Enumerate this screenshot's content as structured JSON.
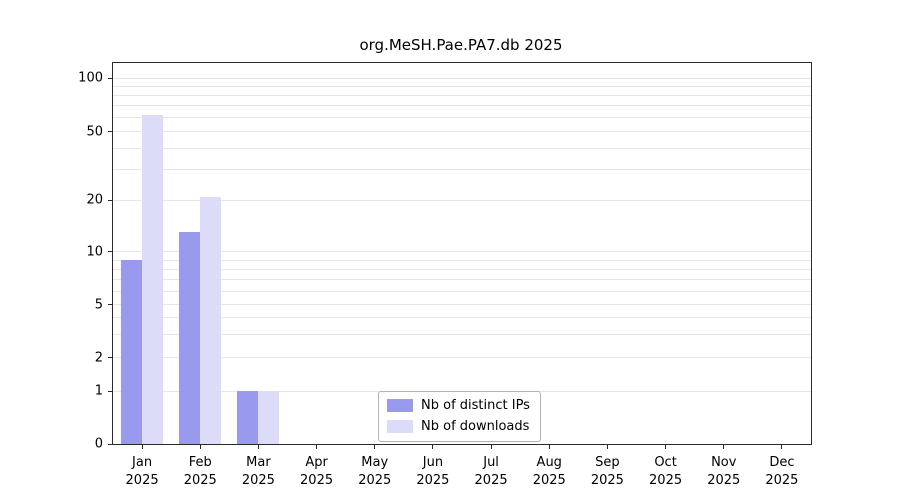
{
  "title": "org.MeSH.Pae.PA7.db 2025",
  "chart_data": {
    "type": "bar",
    "title": "org.MeSH.Pae.PA7.db 2025",
    "xlabel": "",
    "ylabel": "",
    "yscale": "log-like",
    "y_ticks": [
      0,
      1,
      2,
      5,
      10,
      20,
      50,
      100
    ],
    "ylim": [
      0,
      120
    ],
    "grid": "horizontal minor log gridlines",
    "legend_position": "bottom-center-inside",
    "categories": [
      "Jan 2025",
      "Feb 2025",
      "Mar 2025",
      "Apr 2025",
      "May 2025",
      "Jun 2025",
      "Jul 2025",
      "Aug 2025",
      "Sep 2025",
      "Oct 2025",
      "Nov 2025",
      "Dec 2025"
    ],
    "series": [
      {
        "name": "Nb of distinct IPs",
        "color": "#9999ee",
        "values": [
          9,
          13,
          1,
          0,
          0,
          0,
          0,
          0,
          0,
          0,
          0,
          0
        ]
      },
      {
        "name": "Nb of downloads",
        "color": "#dcdcf8",
        "values": [
          62,
          21,
          1,
          0,
          0,
          0,
          0,
          0,
          0,
          0,
          0,
          0
        ]
      }
    ]
  }
}
